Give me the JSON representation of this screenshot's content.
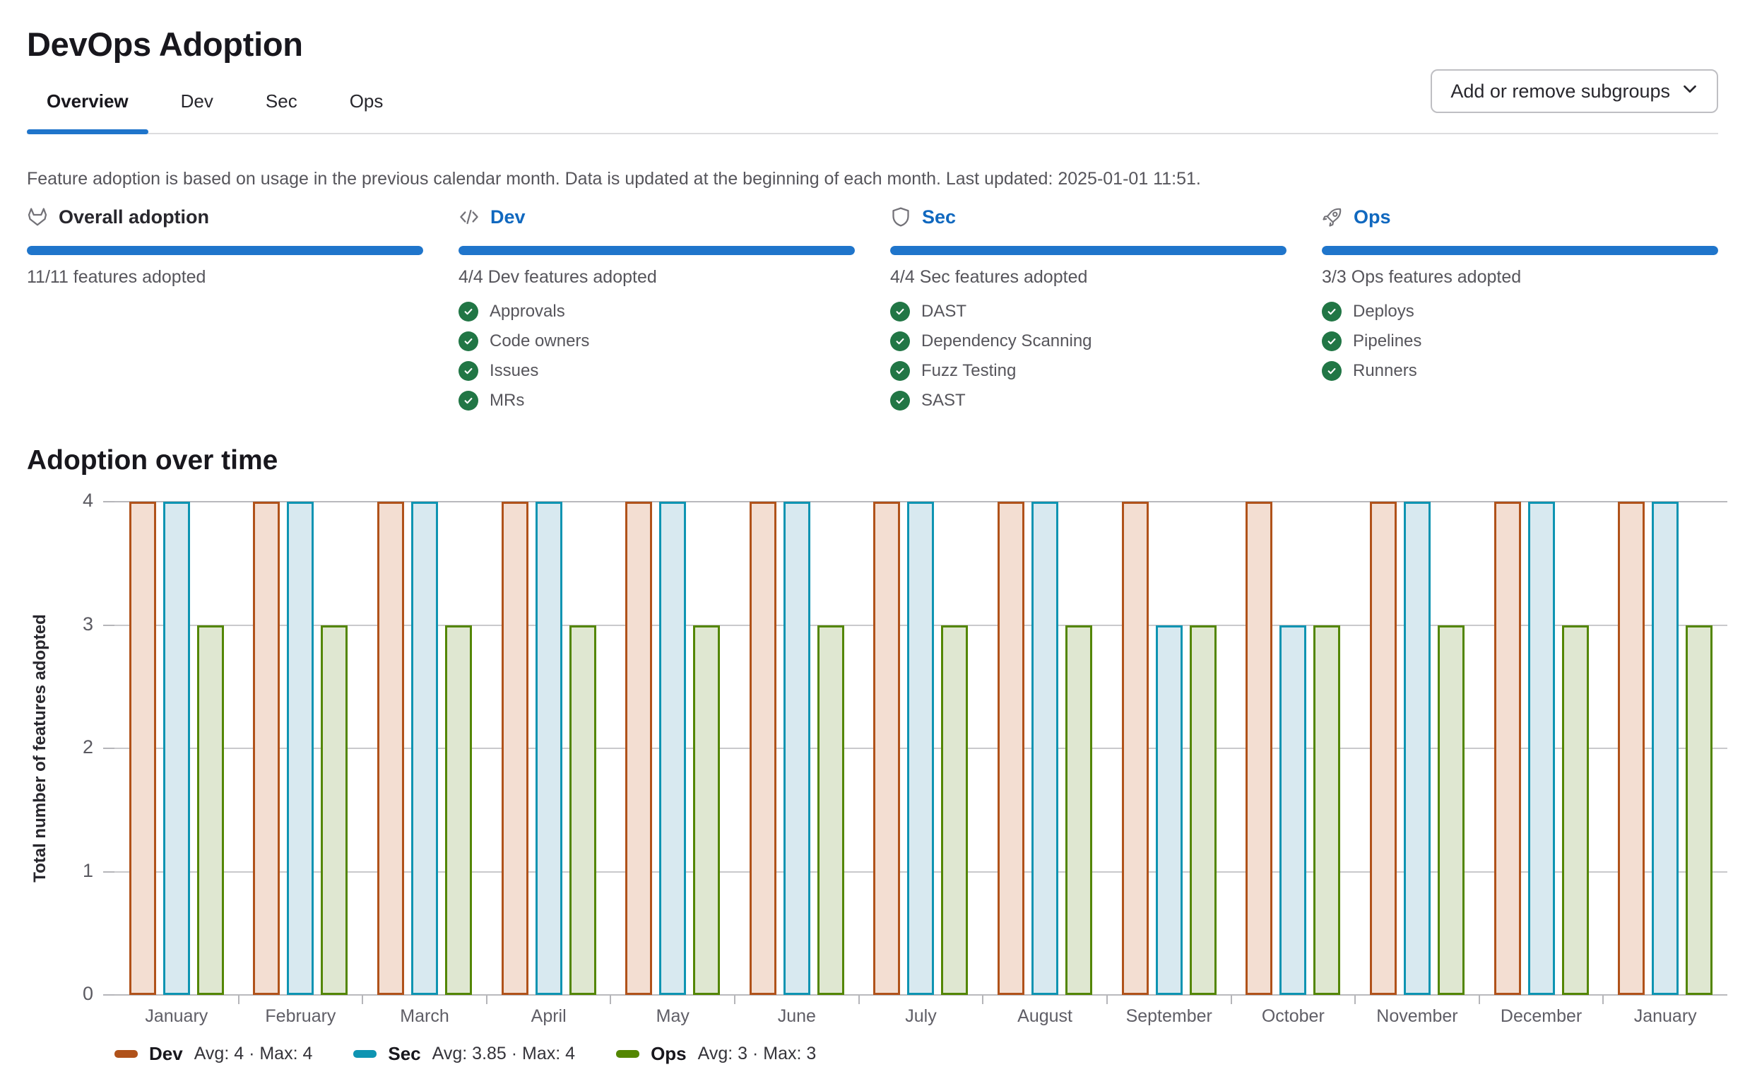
{
  "page": {
    "title": "DevOps Adoption"
  },
  "tabs": [
    {
      "label": "Overview",
      "active": true
    },
    {
      "label": "Dev",
      "active": false
    },
    {
      "label": "Sec",
      "active": false
    },
    {
      "label": "Ops",
      "active": false
    }
  ],
  "toolbar": {
    "add_remove_subgroups_label": "Add or remove subgroups",
    "icon": "chevron-down-icon"
  },
  "info_text": "Feature adoption is based on usage in the previous calendar month. Data is updated at the beginning of each month. Last updated: 2025-01-01 11:51.",
  "cards": [
    {
      "icon": "tanuki-icon",
      "title": "Overall adoption",
      "title_is_link": false,
      "progress_percent": 100,
      "progress_label": "11/11 features adopted",
      "features": []
    },
    {
      "icon": "code-icon",
      "title": "Dev",
      "title_is_link": true,
      "progress_percent": 100,
      "progress_label": "4/4 Dev features adopted",
      "features": [
        "Approvals",
        "Code owners",
        "Issues",
        "MRs"
      ]
    },
    {
      "icon": "shield-icon",
      "title": "Sec",
      "title_is_link": true,
      "progress_percent": 100,
      "progress_label": "4/4 Sec features adopted",
      "features": [
        "DAST",
        "Dependency Scanning",
        "Fuzz Testing",
        "SAST"
      ]
    },
    {
      "icon": "rocket-icon",
      "title": "Ops",
      "title_is_link": true,
      "progress_percent": 100,
      "progress_label": "3/3 Ops features adopted",
      "features": [
        "Deploys",
        "Pipelines",
        "Runners"
      ]
    }
  ],
  "feature_check_icon": "check-circle-icon",
  "chart_section": {
    "title": "Adoption over time"
  },
  "chart_data": {
    "type": "bar",
    "title": "Adoption over time",
    "xlabel": "",
    "ylabel": "Total number of features adopted",
    "ylim": [
      0,
      4
    ],
    "yticks": [
      0,
      1,
      2,
      3,
      4
    ],
    "grid": true,
    "legend_position": "bottom-left",
    "categories": [
      "January",
      "February",
      "March",
      "April",
      "May",
      "June",
      "July",
      "August",
      "September",
      "October",
      "November",
      "December",
      "January"
    ],
    "series": [
      {
        "name": "Dev",
        "values": [
          4,
          4,
          4,
          4,
          4,
          4,
          4,
          4,
          4,
          4,
          4,
          4,
          4
        ],
        "avg": 4,
        "max": 4,
        "stats": "Avg: 4 · Max: 4",
        "stroke": "#b0521a",
        "fill": "#f3ded2"
      },
      {
        "name": "Sec",
        "values": [
          4,
          4,
          4,
          4,
          4,
          4,
          4,
          4,
          3,
          3,
          4,
          4,
          4
        ],
        "avg": 3.85,
        "max": 4,
        "stats": "Avg: 3.85 · Max: 4",
        "stroke": "#0e94b2",
        "fill": "#d8e9f0"
      },
      {
        "name": "Ops",
        "values": [
          3,
          3,
          3,
          3,
          3,
          3,
          3,
          3,
          3,
          3,
          3,
          3,
          3
        ],
        "avg": 3,
        "max": 3,
        "stats": "Avg: 3 · Max: 3",
        "stroke": "#538601",
        "fill": "#dfe7d1"
      }
    ]
  },
  "colors": {
    "link_blue": "#1068bf",
    "tab_underline_blue": "#1f75cb",
    "progress_bar_blue": "#1f75cb",
    "check_green": "#217645",
    "gridline_gray": "#c9c9cc",
    "icon_gray": "#737278"
  }
}
